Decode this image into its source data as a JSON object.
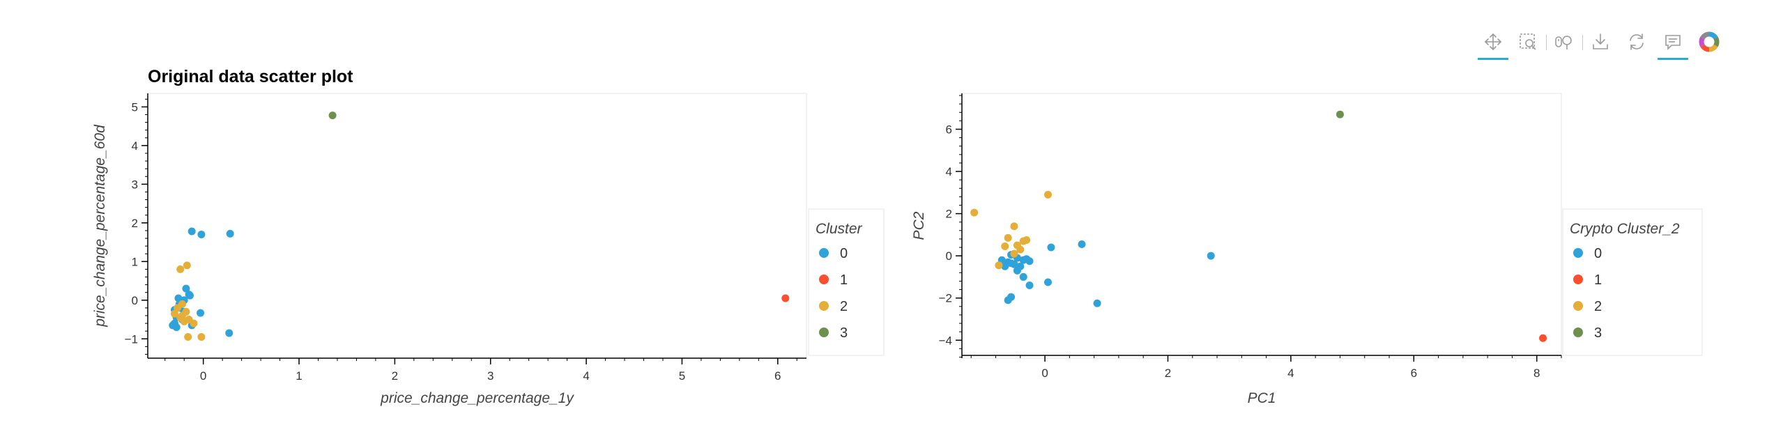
{
  "toolbar": {
    "tools": [
      {
        "name": "pan-tool-icon",
        "active": true
      },
      {
        "name": "box-zoom-icon",
        "active": false
      },
      {
        "name": "wheel-zoom-icon",
        "active": false
      },
      {
        "name": "save-icon",
        "active": false
      },
      {
        "name": "reset-icon",
        "active": false
      },
      {
        "name": "hover-icon",
        "active": true
      },
      {
        "name": "bokeh-logo-icon",
        "active": false
      }
    ]
  },
  "colors": {
    "cluster_0": "#30a2da",
    "cluster_1": "#fc4f30",
    "cluster_2": "#e5ae38",
    "cluster_3": "#6d904f"
  },
  "chart_data": [
    {
      "type": "scatter",
      "title": "Original data scatter plot",
      "xlabel": "price_change_percentage_1y",
      "ylabel": "price_change_percentage_60d",
      "xlim": [
        -0.58,
        6.3
      ],
      "ylim": [
        -1.5,
        5.35
      ],
      "xticks": [
        0,
        1,
        2,
        3,
        4,
        5,
        6
      ],
      "yticks": [
        -1,
        0,
        1,
        2,
        3,
        4,
        5
      ],
      "grid": false,
      "legend": {
        "title": "Cluster",
        "placement": "right"
      },
      "series": [
        {
          "name": "0",
          "color": "#30a2da",
          "points": [
            [
              -0.12,
              1.78
            ],
            [
              -0.02,
              1.7
            ],
            [
              0.28,
              1.72
            ],
            [
              0.27,
              -0.85
            ],
            [
              -0.18,
              0.3
            ],
            [
              -0.14,
              0.12
            ],
            [
              -0.26,
              0.05
            ],
            [
              -0.2,
              0.0
            ],
            [
              -0.25,
              -0.1
            ],
            [
              -0.3,
              -0.25
            ],
            [
              -0.2,
              -0.3
            ],
            [
              -0.03,
              -0.33
            ],
            [
              -0.28,
              -0.45
            ],
            [
              -0.22,
              -0.5
            ],
            [
              -0.3,
              -0.6
            ],
            [
              -0.12,
              -0.65
            ],
            [
              -0.28,
              -0.7
            ],
            [
              -0.25,
              -0.2
            ],
            [
              -0.15,
              0.15
            ],
            [
              -0.32,
              -0.65
            ]
          ]
        },
        {
          "name": "1",
          "color": "#fc4f30",
          "points": [
            [
              6.08,
              0.05
            ]
          ]
        },
        {
          "name": "2",
          "color": "#e5ae38",
          "points": [
            [
              -0.17,
              0.9
            ],
            [
              -0.24,
              0.8
            ],
            [
              -0.22,
              -0.1
            ],
            [
              -0.18,
              -0.3
            ],
            [
              -0.3,
              -0.35
            ],
            [
              -0.24,
              -0.45
            ],
            [
              -0.2,
              -0.55
            ],
            [
              -0.15,
              -0.5
            ],
            [
              -0.1,
              -0.6
            ],
            [
              -0.16,
              -0.95
            ],
            [
              -0.02,
              -0.95
            ],
            [
              -0.27,
              -0.2
            ],
            [
              -0.22,
              -0.4
            ]
          ]
        },
        {
          "name": "3",
          "color": "#6d904f",
          "points": [
            [
              1.35,
              4.78
            ]
          ]
        }
      ]
    },
    {
      "type": "scatter",
      "title": "",
      "xlabel": "PC1",
      "ylabel": "PC2",
      "xlim": [
        -1.35,
        8.4
      ],
      "ylim": [
        -4.85,
        7.7
      ],
      "xticks": [
        0,
        2,
        4,
        6,
        8
      ],
      "yticks": [
        -4,
        -2,
        0,
        2,
        4,
        6
      ],
      "grid": false,
      "legend": {
        "title": "Crypto Cluster_2",
        "placement": "right"
      },
      "series": [
        {
          "name": "0",
          "color": "#30a2da",
          "points": [
            [
              -0.6,
              -2.1
            ],
            [
              -0.55,
              -1.95
            ],
            [
              -0.25,
              -1.4
            ],
            [
              0.05,
              -1.25
            ],
            [
              0.85,
              -2.25
            ],
            [
              2.7,
              0.0
            ],
            [
              0.6,
              0.55
            ],
            [
              0.1,
              0.4
            ],
            [
              -0.35,
              -1.0
            ],
            [
              -0.45,
              -0.7
            ],
            [
              -0.65,
              -0.5
            ],
            [
              -0.7,
              -0.2
            ],
            [
              -0.6,
              -0.3
            ],
            [
              -0.5,
              -0.4
            ],
            [
              -0.45,
              -0.1
            ],
            [
              -0.35,
              -0.2
            ],
            [
              -0.3,
              -0.15
            ],
            [
              -0.25,
              -0.25
            ],
            [
              -0.55,
              0.05
            ],
            [
              -0.4,
              -0.5
            ],
            [
              -0.55,
              -0.35
            ]
          ]
        },
        {
          "name": "1",
          "color": "#fc4f30",
          "points": [
            [
              8.1,
              -3.9
            ]
          ]
        },
        {
          "name": "2",
          "color": "#e5ae38",
          "points": [
            [
              -1.15,
              2.05
            ],
            [
              0.05,
              2.9
            ],
            [
              -0.5,
              1.4
            ],
            [
              -0.6,
              0.85
            ],
            [
              -0.35,
              0.7
            ],
            [
              -0.65,
              0.45
            ],
            [
              -0.45,
              0.5
            ],
            [
              -0.3,
              0.75
            ],
            [
              -0.75,
              -0.45
            ],
            [
              -0.4,
              0.3
            ],
            [
              -0.5,
              0.1
            ]
          ]
        },
        {
          "name": "3",
          "color": "#6d904f",
          "points": [
            [
              4.8,
              6.7
            ]
          ]
        }
      ]
    }
  ]
}
